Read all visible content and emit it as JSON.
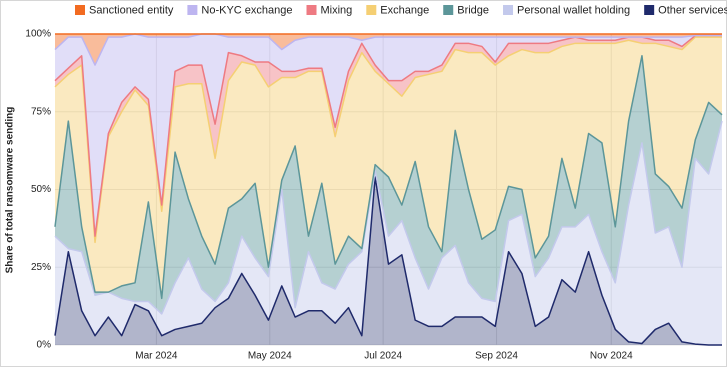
{
  "chart_data": {
    "type": "stacked-area",
    "y_label": "Share of total ransomware sending",
    "x": [
      0,
      1,
      2,
      3,
      4,
      5,
      6,
      7,
      8,
      9,
      10,
      11,
      12,
      13,
      14,
      15,
      16,
      17,
      18,
      19,
      20,
      21,
      22,
      23,
      24,
      25,
      26,
      27,
      28,
      29,
      30,
      31,
      32,
      33,
      34,
      35,
      36,
      37,
      38,
      39,
      40,
      41,
      42,
      43,
      44,
      45,
      46,
      47,
      48,
      49,
      50
    ],
    "xlim": [
      0,
      50
    ],
    "xticks": [
      {
        "value": 7.6,
        "label": "Mar 2024"
      },
      {
        "value": 16.1,
        "label": "May 2024"
      },
      {
        "value": 24.6,
        "label": "Jul 2024"
      },
      {
        "value": 33.1,
        "label": "Sep 2024"
      },
      {
        "value": 41.7,
        "label": "Nov 2024"
      }
    ],
    "ylim": [
      0,
      100
    ],
    "yticks": [
      {
        "value": 0,
        "label": "0%"
      },
      {
        "value": 25,
        "label": "25%"
      },
      {
        "value": 50,
        "label": "50%"
      },
      {
        "value": 75,
        "label": "75%"
      },
      {
        "value": 100,
        "label": "100%"
      }
    ],
    "grid": true,
    "legend": "top",
    "series": [
      {
        "name": "Sanctioned entity",
        "color": "#f26b21",
        "values": [
          5,
          1,
          1,
          10,
          1,
          1,
          0,
          1,
          1,
          1,
          1,
          0,
          0,
          1,
          1,
          1,
          1,
          5,
          2,
          1,
          1,
          1,
          1,
          2,
          1,
          1,
          1,
          1,
          1,
          1,
          1,
          1,
          1,
          1,
          1,
          1,
          1,
          1,
          1,
          1,
          1,
          1,
          1,
          1,
          1,
          1,
          1,
          1,
          0.5,
          0.5,
          0.5
        ]
      },
      {
        "name": "No-KYC exchange",
        "color": "#bdb5f0",
        "values": [
          10,
          10,
          6,
          55,
          31,
          21,
          17,
          20,
          54,
          11,
          9,
          10,
          29,
          5,
          6,
          8,
          8,
          7,
          10,
          10,
          10,
          29,
          11,
          1,
          9,
          14,
          14,
          11,
          11,
          9,
          2,
          2,
          3,
          8,
          2,
          2,
          2,
          2,
          1,
          0,
          1,
          1,
          1,
          0,
          0,
          1,
          1,
          3,
          0,
          0,
          0
        ]
      },
      {
        "name": "Mixing",
        "color": "#ee7a82",
        "values": [
          2,
          2,
          3,
          2,
          1,
          3,
          1,
          2,
          2,
          5,
          6,
          6,
          11,
          9,
          2,
          1,
          8,
          2,
          2,
          1,
          1,
          3,
          3,
          3,
          2,
          1,
          5,
          2,
          1,
          2,
          2,
          3,
          2,
          1,
          4,
          2,
          3,
          3,
          2,
          2,
          1,
          1,
          1,
          1,
          2,
          1,
          2,
          1,
          0.5,
          0.5,
          0.5
        ]
      },
      {
        "name": "Exchange",
        "color": "#f5cf73",
        "values": [
          45,
          15,
          52,
          16,
          50,
          56,
          62,
          31,
          28,
          21,
          37,
          49,
          34,
          41,
          44,
          38,
          58,
          33,
          22,
          53,
          36,
          41,
          50,
          63,
          30,
          30,
          35,
          27,
          49,
          58,
          26,
          44,
          60,
          53,
          42,
          45,
          66,
          59,
          36,
          53,
          29,
          32,
          59,
          26,
          4,
          42,
          45,
          51,
          33,
          21,
          25
        ]
      },
      {
        "name": "Bridge",
        "color": "#5c9699",
        "values": [
          3,
          41,
          8,
          1,
          0,
          4,
          6,
          32,
          5,
          42,
          19,
          17,
          12,
          24,
          12,
          24,
          3,
          3,
          52,
          5,
          32,
          8,
          9,
          1,
          2,
          19,
          5,
          31,
          20,
          2,
          37,
          30,
          19,
          23,
          11,
          8,
          6,
          7,
          22,
          6,
          26,
          35,
          18,
          27,
          28,
          19,
          13,
          19,
          6,
          23,
          2
        ]
      },
      {
        "name": "Personal wallet holding",
        "color": "#c3c9ec",
        "values": [
          32,
          1,
          19,
          13,
          8,
          12,
          1,
          3,
          7,
          15,
          22,
          11,
          2,
          5,
          12,
          12,
          14,
          31,
          3,
          19,
          9,
          11,
          14,
          27,
          2,
          9,
          11,
          20,
          12,
          22,
          23,
          11,
          6,
          8,
          10,
          19,
          16,
          19,
          17,
          21,
          12,
          14,
          15,
          44,
          64.5,
          31,
          31,
          24,
          59.7,
          55,
          72
        ]
      },
      {
        "name": "Other services",
        "color": "#1f2a6b",
        "values": [
          3,
          30,
          11,
          3,
          9,
          3,
          13,
          11,
          3,
          5,
          6,
          7,
          12,
          15,
          23,
          16,
          8,
          19,
          9,
          11,
          11,
          7,
          12,
          3,
          54,
          26,
          29,
          8,
          6,
          6,
          9,
          9,
          9,
          6,
          30,
          23,
          6,
          9,
          21,
          17,
          30,
          16,
          5,
          1,
          0.5,
          5,
          7,
          1,
          0.3,
          0,
          0
        ]
      }
    ]
  }
}
